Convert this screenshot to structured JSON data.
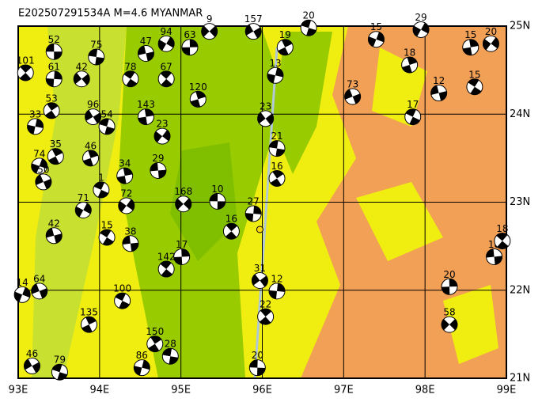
{
  "chart_data": {
    "type": "map",
    "title": "E202507291534A M=4.6 MYANMAR",
    "xlim": [
      93,
      99
    ],
    "ylim": [
      21,
      25
    ],
    "xticks": [
      {
        "value": 93,
        "label": "93E"
      },
      {
        "value": 94,
        "label": "94E"
      },
      {
        "value": 95,
        "label": "95E"
      },
      {
        "value": 96,
        "label": "96E"
      },
      {
        "value": 97,
        "label": "97E"
      },
      {
        "value": 98,
        "label": "98E"
      },
      {
        "value": 99,
        "label": "99E"
      }
    ],
    "yticks": [
      {
        "value": 21,
        "label": "21N"
      },
      {
        "value": 22,
        "label": "22N"
      },
      {
        "value": 23,
        "label": "23N"
      },
      {
        "value": 24,
        "label": "24N"
      },
      {
        "value": 25,
        "label": "25N"
      }
    ],
    "grid": true,
    "epicenter": {
      "x": 95.97,
      "y": 22.69
    },
    "events": {
      "x": [
        93.44,
        93.09,
        93.44,
        93.78,
        93.96,
        93.41,
        93.21,
        93.92,
        94.09,
        93.46,
        93.26,
        93.31,
        94.02,
        93.89,
        93.8,
        93.44,
        94.09,
        94.31,
        94.33,
        94.38,
        94.82,
        95.01,
        95.03,
        95.45,
        95.62,
        95.89,
        96.04,
        96.18,
        96.18,
        96.16,
        95.89,
        96.57,
        96.28,
        97.4,
        97.11,
        97.85,
        97.81,
        97.95,
        98.17,
        98.61,
        98.56,
        98.81,
        98.85,
        98.95,
        98.3,
        98.3,
        95.94,
        96.04,
        96.18,
        95.97,
        94.87,
        94.68,
        94.52,
        93.17,
        93.51,
        93.87,
        93.05,
        93.26,
        94.28,
        95.21,
        94.82,
        94.57,
        94.38,
        94.57,
        94.77,
        94.72,
        94.82,
        95.11,
        95.35
      ],
      "values": [
        24.71,
        24.47,
        24.4,
        24.4,
        24.65,
        24.04,
        23.86,
        23.97,
        23.86,
        23.52,
        23.41,
        23.23,
        23.14,
        23.5,
        22.91,
        22.62,
        22.6,
        23.3,
        22.96,
        22.53,
        22.24,
        22.38,
        22.98,
        23.01,
        22.67,
        22.87,
        23.95,
        23.61,
        23.27,
        24.44,
        24.94,
        24.98,
        24.76,
        24.85,
        24.2,
        23.97,
        24.56,
        24.96,
        24.24,
        24.31,
        24.76,
        24.8,
        22.38,
        22.56,
        22.04,
        21.61,
        21.12,
        21.7,
        21.99,
        22.11,
        21.25,
        21.39,
        21.12,
        21.14,
        21.07,
        21.61,
        21.95,
        21.99,
        21.88,
        24.17,
        24.8,
        24.69,
        24.4,
        23.97,
        23.75,
        23.36,
        24.4,
        24.76,
        24.94
      ],
      "labels": [
        "52",
        "101",
        "61",
        "42",
        "75",
        "53",
        "33",
        "96",
        "54",
        "35",
        "74",
        "50",
        "1",
        "46",
        "71",
        "42",
        "15",
        "34",
        "72",
        "38",
        "142",
        "17",
        "168",
        "10",
        "16",
        "27",
        "23",
        "21",
        "16",
        "13",
        "157",
        "20",
        "19",
        "15",
        "73",
        "17",
        "18",
        "29",
        "12",
        "15",
        "15",
        "20",
        "18",
        "18",
        "20",
        "58",
        "20",
        "22",
        "12",
        "31",
        "28",
        "150",
        "86",
        "46",
        "79",
        "135",
        "14",
        "64",
        "100",
        "120",
        "94",
        "47",
        "78",
        "143",
        "23",
        "29",
        "67",
        "63",
        "9"
      ]
    }
  }
}
